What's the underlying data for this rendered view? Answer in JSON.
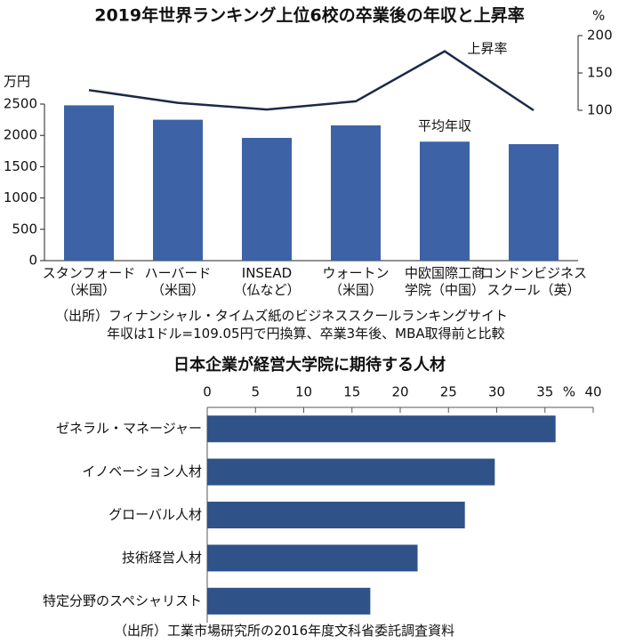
{
  "chart_data": [
    {
      "type": "bar",
      "title": "2019年世界ランキング上位6校の卒業後の年収と上昇率",
      "categories": [
        "スタンフォード\n（米国）",
        "ハーバード\n（米国）",
        "INSEAD\n（仏など）",
        "ウォートン\n（米国）",
        "中欧国際工商\n学院（中国）",
        "ロンドンビジネス\nスクール（英）"
      ],
      "series": [
        {
          "name": "平均年収",
          "type": "bar",
          "color": "#3d62a6",
          "values": [
            2480,
            2250,
            1960,
            2160,
            1900,
            1860
          ]
        },
        {
          "name": "上昇率",
          "type": "line",
          "axis": "y2",
          "color": "#1c2a48",
          "values": [
            127,
            110,
            101,
            112,
            179,
            100
          ]
        }
      ],
      "y_unit": "万円",
      "ylim": [
        0,
        2500
      ],
      "yticks": [
        0,
        500,
        1000,
        1500,
        2000,
        2500
      ],
      "y2_unit": "%",
      "y2lim": [
        100,
        200
      ],
      "y2ticks": [
        100,
        150,
        200
      ],
      "notes": [
        "（出所）フィナンシャル・タイムズ紙のビジネススクールランキングサイト",
        "年収は1ドル=109.05円で円換算、卒業3年後、MBA取得前と比較"
      ]
    },
    {
      "type": "barh",
      "title": "日本企業が経営大学院に期待する人材",
      "categories": [
        "ゼネラル・マネージャー",
        "イノベーション人材",
        "グローバル人材",
        "技術経営人材",
        "特定分野のスペシャリスト"
      ],
      "values": [
        36.1,
        29.8,
        26.7,
        21.8,
        16.9
      ],
      "color": "#2f5288",
      "x_unit": "%",
      "xlim": [
        0,
        40
      ],
      "xticks": [
        0,
        5,
        10,
        15,
        20,
        25,
        30,
        35,
        40
      ],
      "notes": [
        "（出所）工業市場研究所の2016年度文科省委託調査資料"
      ]
    }
  ]
}
